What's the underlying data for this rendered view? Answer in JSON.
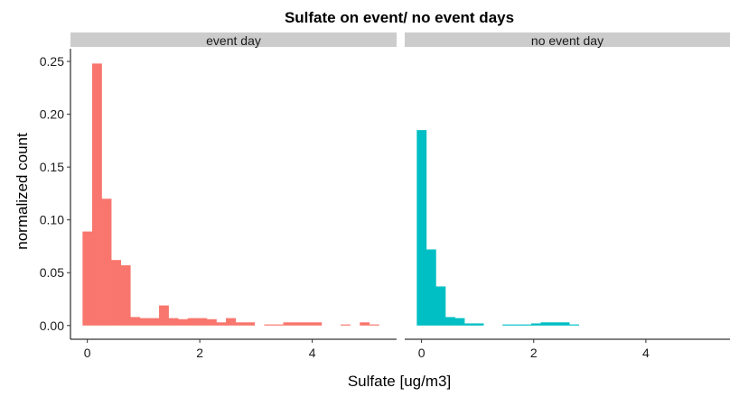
{
  "chart_data": {
    "type": "bar",
    "subtype": "faceted-histogram",
    "title": "Sulfate on event/ no event days",
    "xlabel": "Sulfate [ug/m3]",
    "ylabel": "normalized count",
    "bin_width": 0.17,
    "xlim": [
      -0.3,
      5.5
    ],
    "ylim": [
      -0.013,
      0.262
    ],
    "x_ticks": [
      0,
      2,
      4
    ],
    "x_tick_labels": [
      "0",
      "2",
      "4"
    ],
    "y_ticks": [
      0,
      0.05,
      0.1,
      0.15,
      0.2,
      0.25
    ],
    "y_tick_labels": [
      "0.00",
      "0.05",
      "0.10",
      "0.15",
      "0.20",
      "0.25"
    ],
    "grid": false,
    "legend": "none",
    "facets": [
      {
        "label": "event day",
        "color": "#F8766D",
        "x": [
          0.0,
          0.17,
          0.34,
          0.51,
          0.68,
          0.85,
          1.02,
          1.19,
          1.36,
          1.53,
          1.7,
          1.87,
          2.04,
          2.21,
          2.38,
          2.55,
          2.72,
          2.89,
          3.06,
          3.23,
          3.4,
          3.57,
          3.74,
          3.91,
          4.08,
          4.25,
          4.42,
          4.59,
          4.76,
          4.93,
          5.1
        ],
        "values": [
          0.089,
          0.248,
          0.12,
          0.062,
          0.057,
          0.008,
          0.007,
          0.007,
          0.019,
          0.007,
          0.006,
          0.007,
          0.007,
          0.006,
          0.003,
          0.007,
          0.003,
          0.003,
          0.0,
          0.001,
          0.001,
          0.003,
          0.003,
          0.003,
          0.003,
          0.0,
          0.0,
          0.001,
          0.0,
          0.003,
          0.001
        ]
      },
      {
        "label": "no event day",
        "color": "#00BFC4",
        "x": [
          0.0,
          0.17,
          0.34,
          0.51,
          0.68,
          0.85,
          1.02,
          1.19,
          1.36,
          1.53,
          1.7,
          1.87,
          2.04,
          2.21,
          2.38,
          2.55,
          2.72
        ],
        "values": [
          0.185,
          0.072,
          0.037,
          0.008,
          0.007,
          0.002,
          0.002,
          0.0,
          0.0,
          0.001,
          0.001,
          0.001,
          0.002,
          0.003,
          0.003,
          0.003,
          0.001
        ]
      }
    ]
  }
}
